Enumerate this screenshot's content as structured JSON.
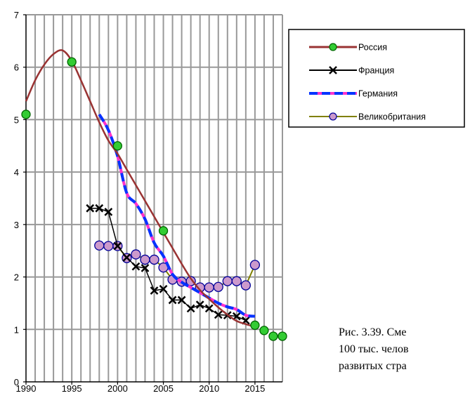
{
  "chart_data": {
    "type": "line",
    "x_ticks": [
      "1990",
      "1995",
      "2000",
      "2005",
      "2010",
      "2015"
    ],
    "y_ticks": [
      "0",
      "1",
      "2",
      "3",
      "4",
      "5",
      "6",
      "7"
    ],
    "xlim": [
      1990,
      2018
    ],
    "ylim": [
      0,
      7
    ],
    "grid": true,
    "legend_position": "top-right",
    "series": [
      {
        "name": "Россия",
        "color": "#993333",
        "marker_color": "#33cc33",
        "points": [
          [
            1990,
            5.1
          ],
          [
            1995,
            6.1
          ],
          [
            2000,
            4.5
          ],
          [
            2005,
            2.88
          ],
          [
            2015,
            1.08
          ],
          [
            2016,
            0.98
          ],
          [
            2017,
            0.87
          ],
          [
            2018,
            0.87
          ]
        ],
        "trend": [
          [
            1990,
            5.35
          ],
          [
            1991,
            5.75
          ],
          [
            1992,
            6.05
          ],
          [
            1993,
            6.25
          ],
          [
            1994,
            6.32
          ],
          [
            1995,
            6.12
          ],
          [
            1996,
            5.75
          ],
          [
            1997,
            5.35
          ],
          [
            1998,
            4.95
          ],
          [
            1999,
            4.6
          ],
          [
            2000,
            4.35
          ],
          [
            2001,
            4.05
          ],
          [
            2002,
            3.75
          ],
          [
            2003,
            3.45
          ],
          [
            2004,
            3.15
          ],
          [
            2005,
            2.85
          ],
          [
            2006,
            2.55
          ],
          [
            2007,
            2.25
          ],
          [
            2008,
            1.97
          ],
          [
            2009,
            1.75
          ],
          [
            2010,
            1.58
          ],
          [
            2011,
            1.42
          ],
          [
            2012,
            1.28
          ],
          [
            2013,
            1.16
          ],
          [
            2014,
            1.1
          ],
          [
            2015,
            1.05
          ]
        ]
      },
      {
        "name": "Франция",
        "color": "#000000",
        "points": [
          [
            1997,
            3.31
          ],
          [
            1998,
            3.31
          ],
          [
            1999,
            3.24
          ],
          [
            2000,
            2.59
          ],
          [
            2001,
            2.37
          ],
          [
            2002,
            2.2
          ],
          [
            2003,
            2.17
          ],
          [
            2004,
            1.74
          ],
          [
            2005,
            1.77
          ],
          [
            2006,
            1.56
          ],
          [
            2007,
            1.56
          ],
          [
            2008,
            1.4
          ],
          [
            2009,
            1.47
          ],
          [
            2010,
            1.4
          ],
          [
            2011,
            1.28
          ],
          [
            2012,
            1.27
          ],
          [
            2013,
            1.25
          ],
          [
            2014,
            1.17
          ]
        ]
      },
      {
        "name": "Германия",
        "color": "#0033ff",
        "dash_color": "#ff33cc",
        "points": [
          [
            1998,
            5.1
          ],
          [
            1999,
            4.8
          ],
          [
            2000,
            4.3
          ],
          [
            2001,
            3.6
          ],
          [
            2002,
            3.4
          ],
          [
            2003,
            3.1
          ],
          [
            2004,
            2.65
          ],
          [
            2005,
            2.4
          ],
          [
            2006,
            2.05
          ],
          [
            2007,
            1.9
          ],
          [
            2008,
            1.8
          ],
          [
            2009,
            1.7
          ],
          [
            2010,
            1.6
          ],
          [
            2011,
            1.5
          ],
          [
            2012,
            1.43
          ],
          [
            2013,
            1.38
          ],
          [
            2014,
            1.27
          ],
          [
            2015,
            1.25
          ]
        ]
      },
      {
        "name": "Великобритания",
        "color": "#808000",
        "marker_color": "#cc99cc",
        "marker_edge": "#000099",
        "points": [
          [
            1998,
            2.6
          ],
          [
            1999,
            2.59
          ],
          [
            2000,
            2.59
          ],
          [
            2001,
            2.36
          ],
          [
            2002,
            2.43
          ],
          [
            2003,
            2.33
          ],
          [
            2004,
            2.33
          ],
          [
            2005,
            2.18
          ],
          [
            2006,
            1.95
          ],
          [
            2007,
            1.91
          ],
          [
            2008,
            1.92
          ],
          [
            2009,
            1.8
          ],
          [
            2010,
            1.8
          ],
          [
            2011,
            1.81
          ],
          [
            2012,
            1.92
          ],
          [
            2013,
            1.92
          ],
          [
            2014,
            1.84
          ],
          [
            2015,
            2.23
          ]
        ]
      }
    ]
  },
  "caption_lines": [
    "Рис. 3.39. Сме",
    "100 тыс. челов",
    "развитых стра"
  ]
}
